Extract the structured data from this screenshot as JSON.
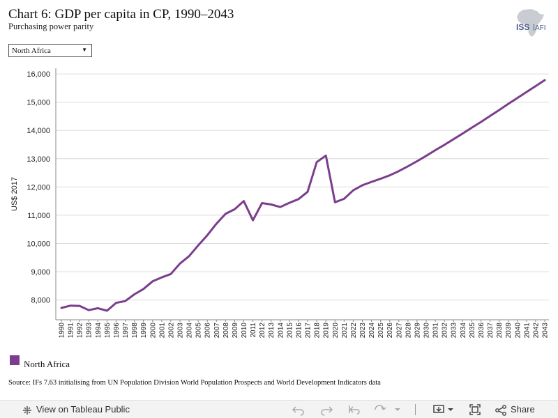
{
  "title": "Chart 6: GDP per capita in CP, 1990–2043",
  "subtitle": "Purchasing power parity",
  "logo": {
    "text": "ISS",
    "suffix": "AFI"
  },
  "filter": {
    "selected": "North Africa"
  },
  "source": "Source: IFs 7.63 initialising from UN Population Division World Population Prospects and World Development Indicators data",
  "footer": {
    "view_label": "View on Tableau Public",
    "share_label": "Share",
    "icons": [
      "undo-icon",
      "redo-icon",
      "revert-icon",
      "refresh-icon",
      "download-icon",
      "fullscreen-icon",
      "share-icon"
    ]
  },
  "colors": {
    "series": "#7b3d8c",
    "grid": "#dcdcdc",
    "axis": "#888888"
  },
  "chart_data": {
    "type": "line",
    "ylabel": "US$ 2017",
    "ylim": [
      7300,
      16200
    ],
    "yticks": [
      "8,000",
      "9,000",
      "10,000",
      "11,000",
      "12,000",
      "13,000",
      "14,000",
      "15,000",
      "16,000"
    ],
    "grid": true,
    "legend_position": "bottom-left",
    "x": [
      "1990",
      "1991",
      "1992",
      "1993",
      "1994",
      "1995",
      "1996",
      "1997",
      "1998",
      "1999",
      "2000",
      "2001",
      "2002",
      "2003",
      "2004",
      "2005",
      "2006",
      "2007",
      "2008",
      "2009",
      "2010",
      "2011",
      "2012",
      "2013",
      "2014",
      "2015",
      "2016",
      "2017",
      "2018",
      "2019",
      "2020",
      "2021",
      "2022",
      "2023",
      "2024",
      "2025",
      "2026",
      "2027",
      "2028",
      "2029",
      "2030",
      "2031",
      "2032",
      "2033",
      "2034",
      "2035",
      "2036",
      "2037",
      "2038",
      "2039",
      "2040",
      "2041",
      "2042",
      "2043"
    ],
    "series": [
      {
        "name": "North Africa",
        "values": [
          7720,
          7800,
          7790,
          7640,
          7710,
          7620,
          7900,
          7960,
          8200,
          8390,
          8660,
          8800,
          8920,
          9290,
          9550,
          9930,
          10290,
          10700,
          11050,
          11210,
          11500,
          10820,
          11430,
          11380,
          11290,
          11440,
          11570,
          11830,
          12880,
          13110,
          11460,
          11580,
          11880,
          12060,
          12180,
          12290,
          12410,
          12560,
          12730,
          12910,
          13100,
          13300,
          13490,
          13690,
          13890,
          14100,
          14300,
          14510,
          14720,
          14940,
          15150,
          15360,
          15570,
          15780
        ]
      }
    ]
  }
}
